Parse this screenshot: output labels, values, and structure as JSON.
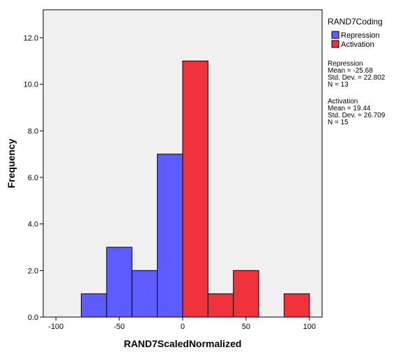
{
  "chart_data": {
    "type": "bar",
    "subtype": "stacked-histogram",
    "xlabel": "RAND7ScaledNormalized",
    "ylabel": "Frequency",
    "xlim": [
      -110,
      110
    ],
    "ylim": [
      0,
      13.2
    ],
    "xticks": [
      -100,
      -50,
      0,
      50,
      100
    ],
    "xtick_labels": [
      "-100",
      "-50",
      "0",
      "50",
      "100"
    ],
    "yticks": [
      0,
      2,
      4,
      6,
      8,
      10,
      12
    ],
    "ytick_labels": [
      "0.0",
      "2.0",
      "4.0",
      "6.0",
      "8.0",
      "10.0",
      "12.0"
    ],
    "grid": false,
    "plot_background": "#f0f0f0",
    "legend": {
      "title": "RAND7Coding",
      "placement": "right",
      "entries": [
        {
          "name": "Repression",
          "color": "#5c5cff"
        },
        {
          "name": "Activation",
          "color": "#f0323c"
        }
      ]
    },
    "series": [
      {
        "name": "Repression",
        "color": "#5c5cff",
        "bins": [
          {
            "x0": -80,
            "x1": -60,
            "count": 1
          },
          {
            "x0": -60,
            "x1": -40,
            "count": 3
          },
          {
            "x0": -40,
            "x1": -20,
            "count": 2
          },
          {
            "x0": -20,
            "x1": 0,
            "count": 7
          }
        ]
      },
      {
        "name": "Activation",
        "color": "#f0323c",
        "bins": [
          {
            "x0": 0,
            "x1": 20,
            "count": 11
          },
          {
            "x0": 20,
            "x1": 40,
            "count": 1
          },
          {
            "x0": 40,
            "x1": 60,
            "count": 2
          },
          {
            "x0": 80,
            "x1": 100,
            "count": 1
          }
        ]
      }
    ],
    "statistics": [
      {
        "group": "Repression",
        "lines": [
          "Mean = -25.68",
          "Std. Dev. = 22.802",
          "N = 13"
        ]
      },
      {
        "group": "Activation",
        "lines": [
          "Mean = 19.44",
          "Std. Dev. = 26.709",
          "N = 15"
        ]
      }
    ]
  }
}
